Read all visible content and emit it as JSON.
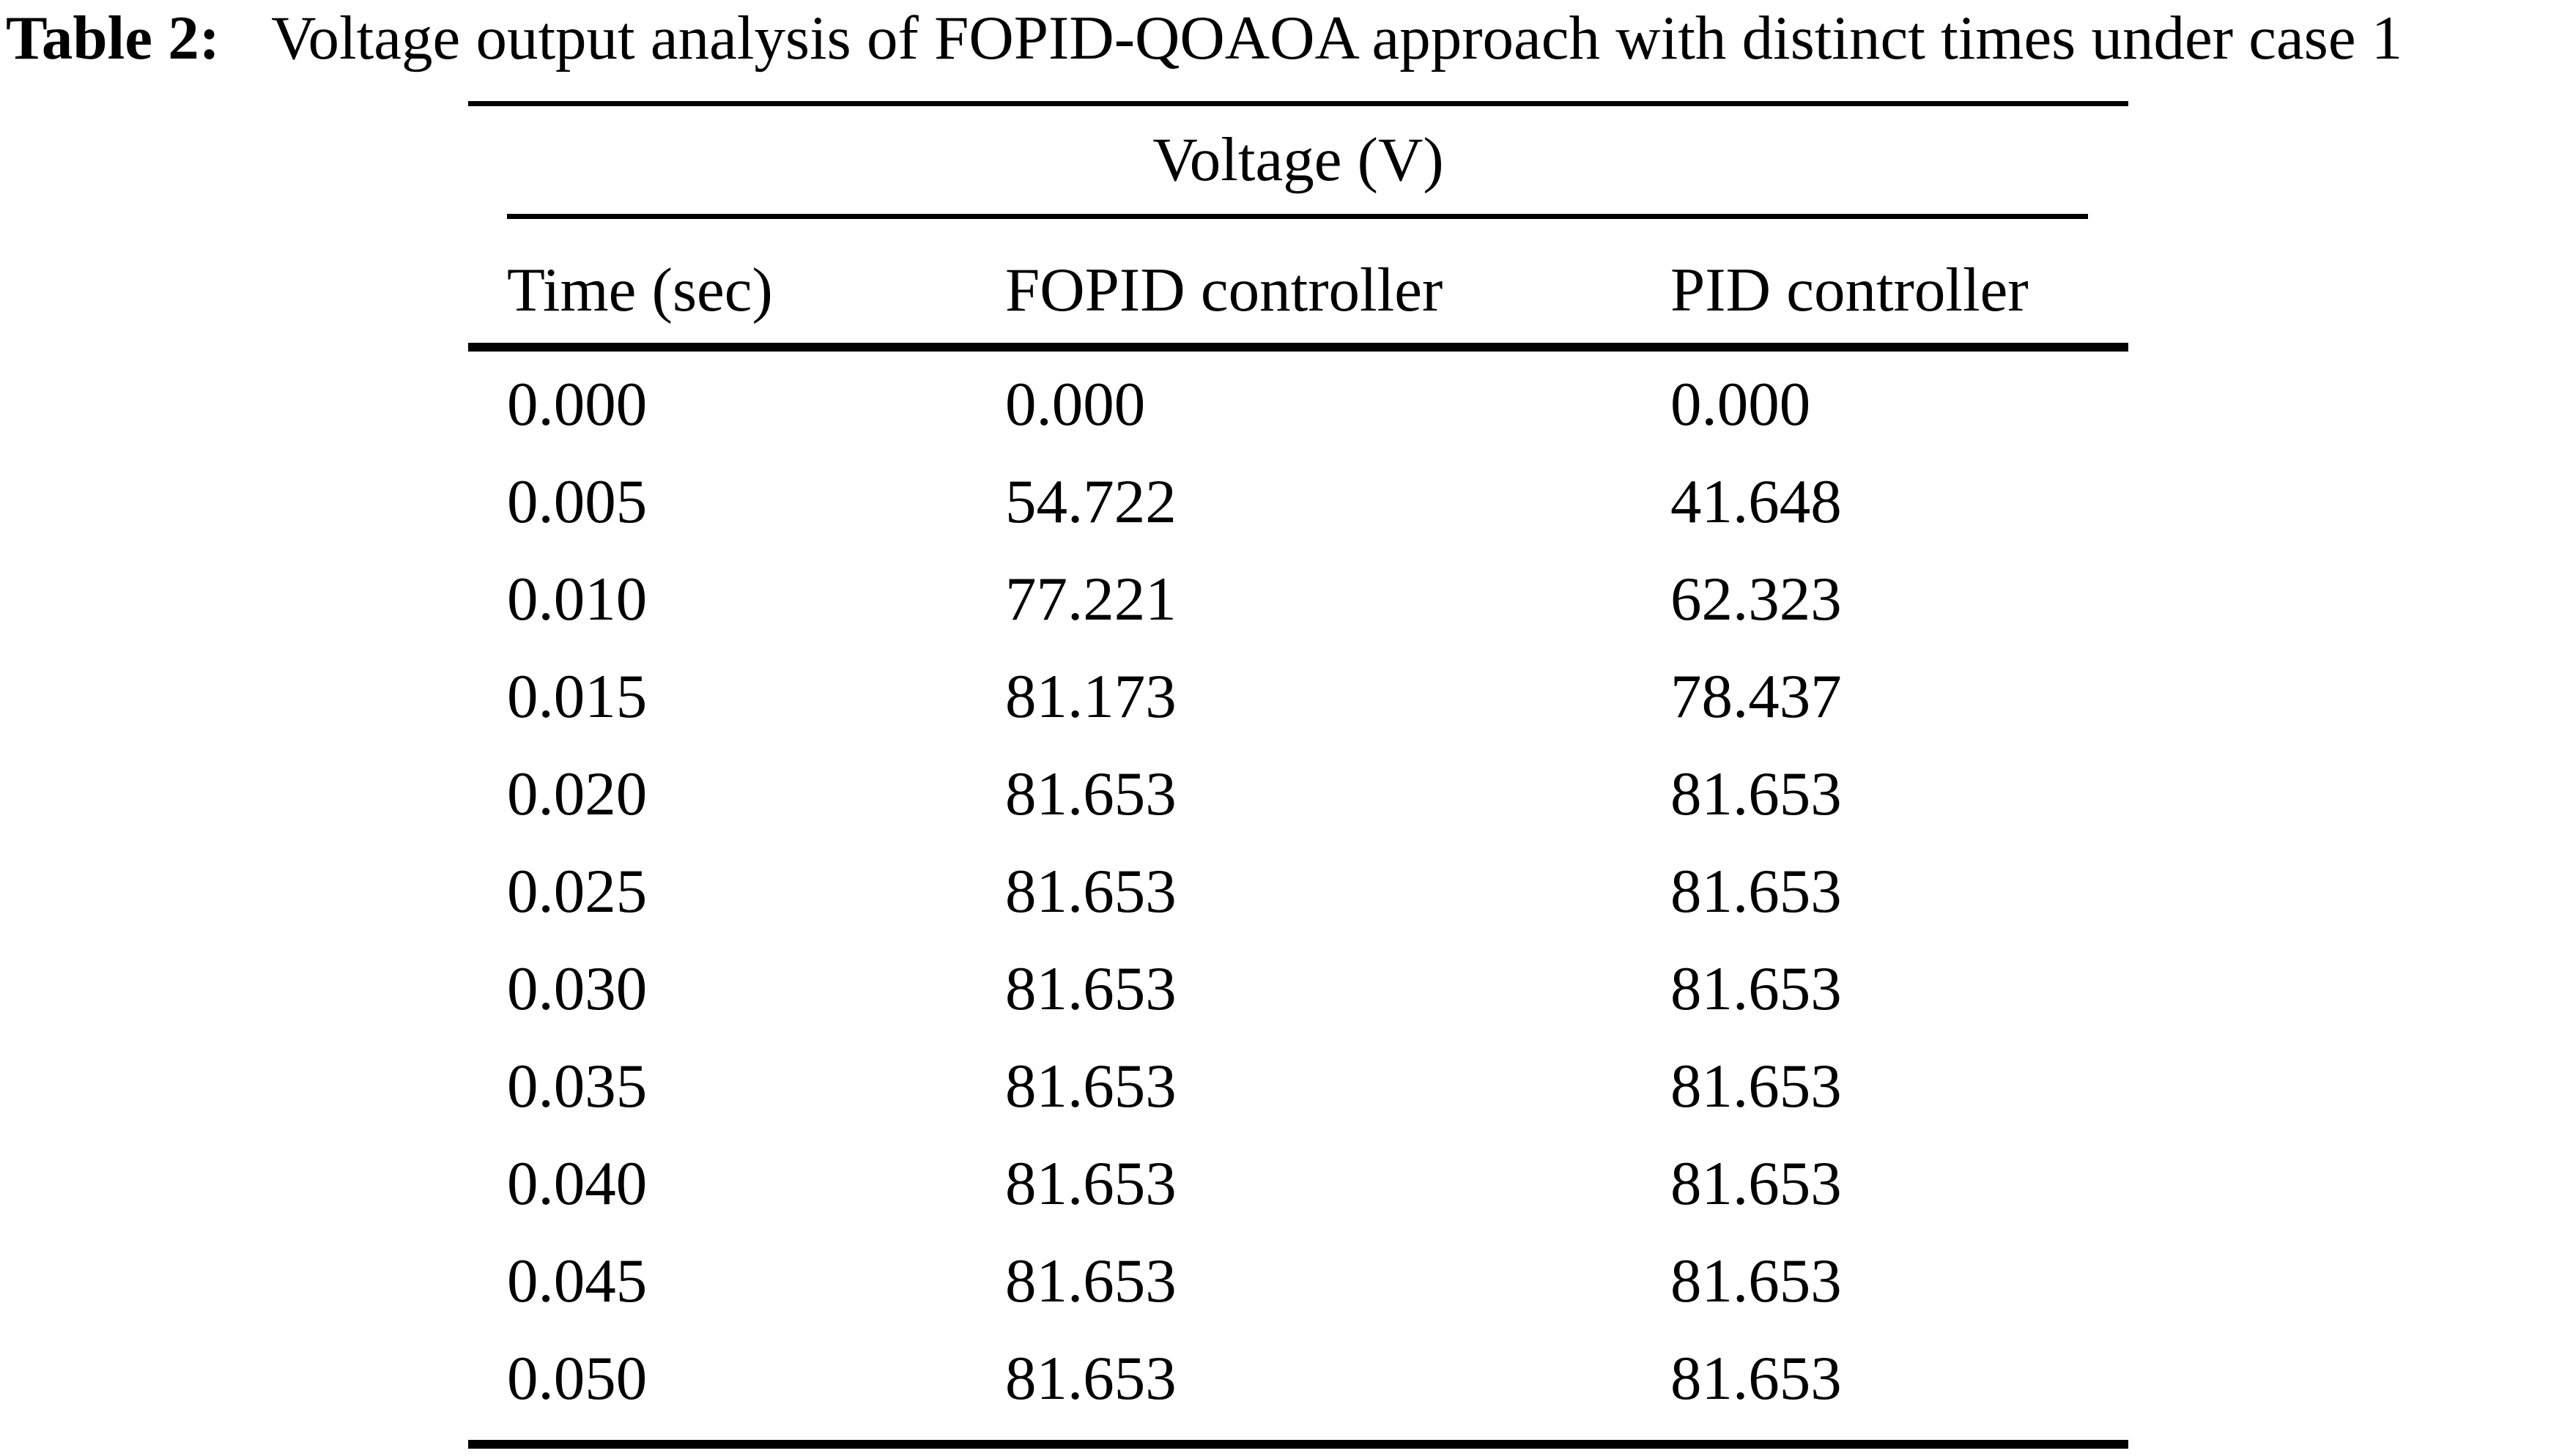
{
  "caption": {
    "label": "Table 2:",
    "text": "Voltage output analysis of FOPID-QOAOA approach with distinct times under case 1"
  },
  "table": {
    "span_header": "Voltage (V)",
    "columns": [
      "Time (sec)",
      "FOPID controller",
      "PID controller"
    ],
    "rows": [
      [
        "0.000",
        "0.000",
        "0.000"
      ],
      [
        "0.005",
        "54.722",
        "41.648"
      ],
      [
        "0.010",
        "77.221",
        "62.323"
      ],
      [
        "0.015",
        "81.173",
        "78.437"
      ],
      [
        "0.020",
        "81.653",
        "81.653"
      ],
      [
        "0.025",
        "81.653",
        "81.653"
      ],
      [
        "0.030",
        "81.653",
        "81.653"
      ],
      [
        "0.035",
        "81.653",
        "81.653"
      ],
      [
        "0.040",
        "81.653",
        "81.653"
      ],
      [
        "0.045",
        "81.653",
        "81.653"
      ],
      [
        "0.050",
        "81.653",
        "81.653"
      ]
    ]
  },
  "colors": {
    "text": "#000000",
    "background": "#ffffff",
    "rule": "#000000"
  }
}
